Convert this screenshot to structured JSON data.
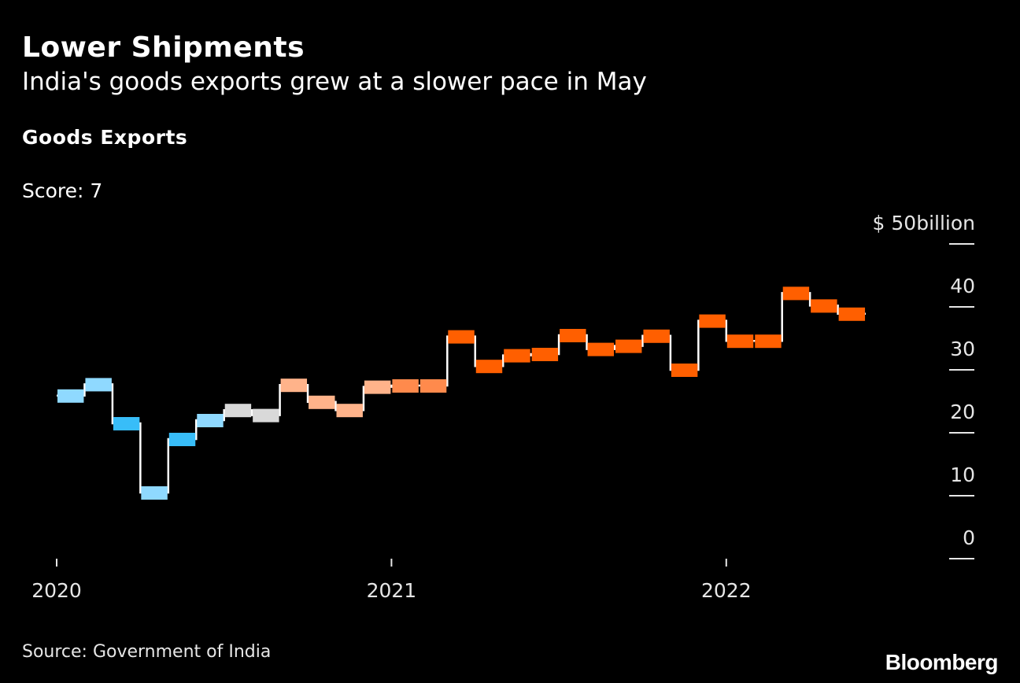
{
  "header": {
    "title": "Lower Shipments",
    "subtitle": "India's goods exports grew at a slower pace in May"
  },
  "panel": {
    "title": "Goods Exports",
    "score_label": "Score: 7"
  },
  "footer": {
    "source": "Source: Government of India",
    "logo": "Bloomberg"
  },
  "colors": {
    "background": "#000000",
    "line": "#ffffff",
    "light_blue": "#8fd9ff",
    "blue": "#38bdf8",
    "gray": "#d9d9d9",
    "peach": "#ffb38a",
    "light_orange": "#ff8a4c",
    "orange": "#ff5f00"
  },
  "chart_data": {
    "type": "line",
    "title": "Goods Exports",
    "xlabel": "",
    "ylabel": "$ billion",
    "y_unit_label": "$ 50billion",
    "ylim": [
      0,
      50
    ],
    "yticks": [
      0,
      10,
      20,
      30,
      40,
      50
    ],
    "ytick_labels": [
      "0",
      "10",
      "20",
      "30",
      "40",
      "$ 50billion"
    ],
    "xticks": [
      {
        "label": "2020",
        "month_index": 0
      },
      {
        "label": "2021",
        "month_index": 12
      },
      {
        "label": "2022",
        "month_index": 24
      }
    ],
    "series": [
      {
        "name": "Goods Exports",
        "style": "step",
        "points": [
          {
            "month": "2020-01",
            "value": 25.9,
            "color_key": "light_blue"
          },
          {
            "month": "2020-02",
            "value": 27.7,
            "color_key": "light_blue"
          },
          {
            "month": "2020-03",
            "value": 21.5,
            "color_key": "blue"
          },
          {
            "month": "2020-04",
            "value": 10.5,
            "color_key": "light_blue"
          },
          {
            "month": "2020-05",
            "value": 19.0,
            "color_key": "blue"
          },
          {
            "month": "2020-06",
            "value": 22.0,
            "color_key": "light_blue"
          },
          {
            "month": "2020-07",
            "value": 23.6,
            "color_key": "gray"
          },
          {
            "month": "2020-08",
            "value": 22.8,
            "color_key": "gray"
          },
          {
            "month": "2020-09",
            "value": 27.6,
            "color_key": "peach"
          },
          {
            "month": "2020-10",
            "value": 24.9,
            "color_key": "peach"
          },
          {
            "month": "2020-11",
            "value": 23.6,
            "color_key": "peach"
          },
          {
            "month": "2020-12",
            "value": 27.3,
            "color_key": "peach"
          },
          {
            "month": "2021-01",
            "value": 27.5,
            "color_key": "light_orange"
          },
          {
            "month": "2021-02",
            "value": 27.5,
            "color_key": "light_orange"
          },
          {
            "month": "2021-03",
            "value": 35.3,
            "color_key": "orange"
          },
          {
            "month": "2021-04",
            "value": 30.6,
            "color_key": "orange"
          },
          {
            "month": "2021-05",
            "value": 32.3,
            "color_key": "orange"
          },
          {
            "month": "2021-06",
            "value": 32.5,
            "color_key": "orange"
          },
          {
            "month": "2021-07",
            "value": 35.5,
            "color_key": "orange"
          },
          {
            "month": "2021-08",
            "value": 33.3,
            "color_key": "orange"
          },
          {
            "month": "2021-09",
            "value": 33.8,
            "color_key": "orange"
          },
          {
            "month": "2021-10",
            "value": 35.4,
            "color_key": "orange"
          },
          {
            "month": "2021-11",
            "value": 30.0,
            "color_key": "orange"
          },
          {
            "month": "2021-12",
            "value": 37.8,
            "color_key": "orange"
          },
          {
            "month": "2022-01",
            "value": 34.6,
            "color_key": "orange"
          },
          {
            "month": "2022-02",
            "value": 34.6,
            "color_key": "orange"
          },
          {
            "month": "2022-03",
            "value": 42.2,
            "color_key": "orange"
          },
          {
            "month": "2022-04",
            "value": 40.2,
            "color_key": "orange"
          },
          {
            "month": "2022-05",
            "value": 38.9,
            "color_key": "orange"
          }
        ]
      }
    ]
  }
}
